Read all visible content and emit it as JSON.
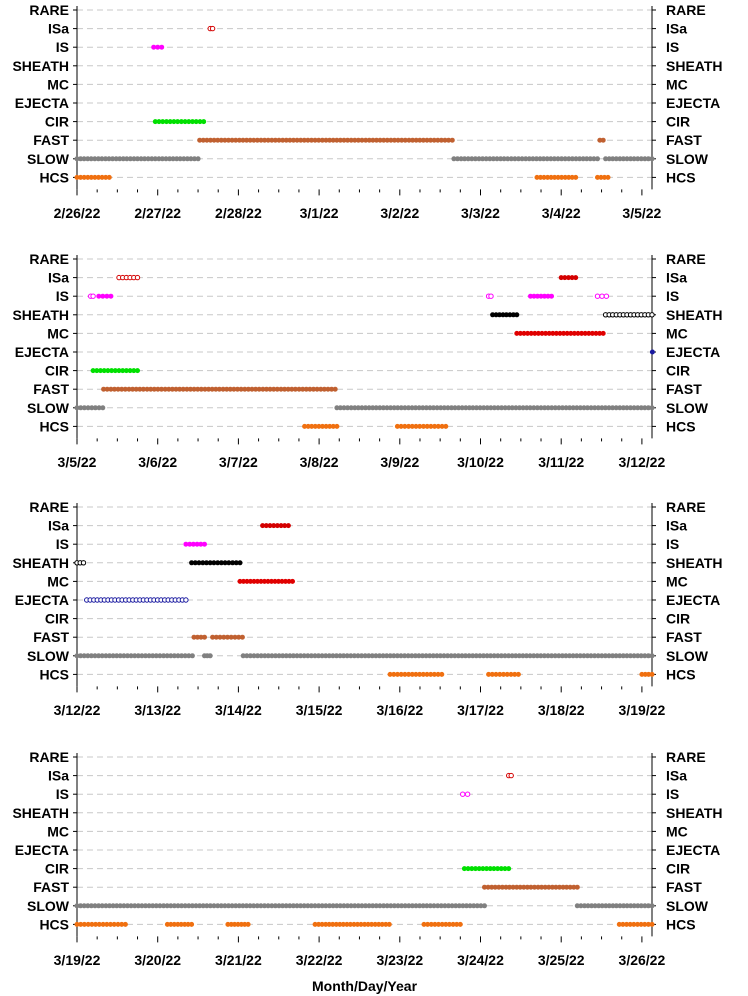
{
  "chart_data": {
    "type": "scatter",
    "xlabel": "Month/Day/Year",
    "categories": [
      "RARE",
      "ISa",
      "IS",
      "SHEATH",
      "MC",
      "EJECTA",
      "CIR",
      "FAST",
      "SLOW",
      "HCS"
    ],
    "grid": "dashed horizontal",
    "colors": {
      "RARE": "#000000",
      "ISa": "#d40000",
      "IS": "#ff00ff",
      "SHEATH": "#000000",
      "MC": "#e00000",
      "EJECTA": "#1a1aa0",
      "CIR": "#00e000",
      "FAST": "#c06030",
      "SLOW": "#808080",
      "HCS": "#f07010"
    },
    "panels": [
      {
        "xlim": [
          "2/26/22",
          "3/5/22"
        ],
        "tick_labels": [
          "2/26/22",
          "2/27/22",
          "2/28/22",
          "3/1/22",
          "3/2/22",
          "3/3/22",
          "3/4/22",
          "3/5/22"
        ],
        "segments": [
          {
            "category": "ISa",
            "start": 1.65,
            "end": 1.68,
            "marker": "open"
          },
          {
            "category": "IS",
            "start": 0.95,
            "end": 1.05,
            "marker": "filled"
          },
          {
            "category": "CIR",
            "start": 0.97,
            "end": 1.57,
            "marker": "filled"
          },
          {
            "category": "FAST",
            "start": 1.52,
            "end": 4.65,
            "marker": "filled"
          },
          {
            "category": "FAST",
            "start": 6.48,
            "end": 6.52,
            "marker": "filled"
          },
          {
            "category": "SLOW",
            "start": 0.0,
            "end": 1.5,
            "marker": "filled"
          },
          {
            "category": "SLOW",
            "start": 4.67,
            "end": 6.45,
            "marker": "filled"
          },
          {
            "category": "SLOW",
            "start": 6.55,
            "end": 7.15,
            "marker": "filled"
          },
          {
            "category": "HCS",
            "start": 0.0,
            "end": 0.4,
            "marker": "filled"
          },
          {
            "category": "HCS",
            "start": 5.7,
            "end": 6.18,
            "marker": "filled"
          },
          {
            "category": "HCS",
            "start": 6.45,
            "end": 6.58,
            "marker": "filled"
          }
        ]
      },
      {
        "xlim": [
          "3/5/22",
          "3/12/22"
        ],
        "tick_labels": [
          "3/5/22",
          "3/6/22",
          "3/7/22",
          "3/8/22",
          "3/9/22",
          "3/10/22",
          "3/11/22",
          "3/12/22"
        ],
        "segments": [
          {
            "category": "ISa",
            "start": 0.52,
            "end": 0.75,
            "marker": "open"
          },
          {
            "category": "ISa",
            "start": 6.0,
            "end": 6.18,
            "marker": "filled"
          },
          {
            "category": "IS",
            "start": 0.17,
            "end": 0.2,
            "marker": "open"
          },
          {
            "category": "IS",
            "start": 0.27,
            "end": 0.42,
            "marker": "filled"
          },
          {
            "category": "IS",
            "start": 5.1,
            "end": 5.13,
            "marker": "open"
          },
          {
            "category": "IS",
            "start": 5.62,
            "end": 5.88,
            "marker": "filled"
          },
          {
            "category": "IS",
            "start": 6.45,
            "end": 6.56,
            "marker": "open"
          },
          {
            "category": "SHEATH",
            "start": 5.15,
            "end": 5.45,
            "marker": "filled"
          },
          {
            "category": "SHEATH",
            "start": 6.55,
            "end": 7.15,
            "marker": "open"
          },
          {
            "category": "MC",
            "start": 5.45,
            "end": 6.52,
            "marker": "filled"
          },
          {
            "category": "EJECTA",
            "start": 7.13,
            "end": 7.15,
            "marker": "filled"
          },
          {
            "category": "CIR",
            "start": 0.2,
            "end": 0.75,
            "marker": "filled"
          },
          {
            "category": "FAST",
            "start": 0.33,
            "end": 3.2,
            "marker": "filled"
          },
          {
            "category": "SLOW",
            "start": 0.0,
            "end": 0.32,
            "marker": "filled"
          },
          {
            "category": "SLOW",
            "start": 3.22,
            "end": 7.15,
            "marker": "filled"
          },
          {
            "category": "HCS",
            "start": 2.82,
            "end": 3.22,
            "marker": "filled"
          },
          {
            "category": "HCS",
            "start": 3.97,
            "end": 4.57,
            "marker": "filled"
          }
        ]
      },
      {
        "xlim": [
          "3/12/22",
          "3/19/22"
        ],
        "tick_labels": [
          "3/12/22",
          "3/13/22",
          "3/14/22",
          "3/15/22",
          "3/16/22",
          "3/17/22",
          "3/18/22",
          "3/19/22"
        ],
        "segments": [
          {
            "category": "ISa",
            "start": 2.3,
            "end": 2.62,
            "marker": "filled"
          },
          {
            "category": "IS",
            "start": 1.35,
            "end": 1.58,
            "marker": "filled"
          },
          {
            "category": "SHEATH",
            "start": 0.0,
            "end": 0.08,
            "marker": "open"
          },
          {
            "category": "SHEATH",
            "start": 1.42,
            "end": 2.02,
            "marker": "filled"
          },
          {
            "category": "MC",
            "start": 2.02,
            "end": 2.67,
            "marker": "filled"
          },
          {
            "category": "EJECTA",
            "start": 0.12,
            "end": 1.35,
            "marker": "open"
          },
          {
            "category": "FAST",
            "start": 1.45,
            "end": 1.58,
            "marker": "filled"
          },
          {
            "category": "FAST",
            "start": 1.68,
            "end": 2.05,
            "marker": "filled"
          },
          {
            "category": "SLOW",
            "start": 0.0,
            "end": 1.43,
            "marker": "filled"
          },
          {
            "category": "SLOW",
            "start": 1.58,
            "end": 1.65,
            "marker": "filled"
          },
          {
            "category": "SLOW",
            "start": 2.06,
            "end": 7.15,
            "marker": "filled"
          },
          {
            "category": "HCS",
            "start": 3.88,
            "end": 4.52,
            "marker": "filled"
          },
          {
            "category": "HCS",
            "start": 5.1,
            "end": 5.47,
            "marker": "filled"
          },
          {
            "category": "HCS",
            "start": 7.0,
            "end": 7.15,
            "marker": "filled"
          }
        ]
      },
      {
        "xlim": [
          "3/19/22",
          "3/26/22"
        ],
        "tick_labels": [
          "3/19/22",
          "3/20/22",
          "3/21/22",
          "3/22/22",
          "3/23/22",
          "3/24/22",
          "3/25/22",
          "3/26/22"
        ],
        "segments": [
          {
            "category": "ISa",
            "start": 5.35,
            "end": 5.38,
            "marker": "open"
          },
          {
            "category": "IS",
            "start": 4.78,
            "end": 4.84,
            "marker": "open"
          },
          {
            "category": "CIR",
            "start": 4.8,
            "end": 5.35,
            "marker": "filled"
          },
          {
            "category": "FAST",
            "start": 5.05,
            "end": 6.2,
            "marker": "filled"
          },
          {
            "category": "SLOW",
            "start": 0.0,
            "end": 5.05,
            "marker": "filled"
          },
          {
            "category": "SLOW",
            "start": 6.2,
            "end": 7.15,
            "marker": "filled"
          },
          {
            "category": "HCS",
            "start": 0.0,
            "end": 0.6,
            "marker": "filled"
          },
          {
            "category": "HCS",
            "start": 1.12,
            "end": 1.42,
            "marker": "filled"
          },
          {
            "category": "HCS",
            "start": 1.87,
            "end": 2.12,
            "marker": "filled"
          },
          {
            "category": "HCS",
            "start": 2.95,
            "end": 3.87,
            "marker": "filled"
          },
          {
            "category": "HCS",
            "start": 4.3,
            "end": 4.75,
            "marker": "filled"
          },
          {
            "category": "HCS",
            "start": 6.72,
            "end": 7.15,
            "marker": "filled"
          }
        ]
      }
    ]
  }
}
